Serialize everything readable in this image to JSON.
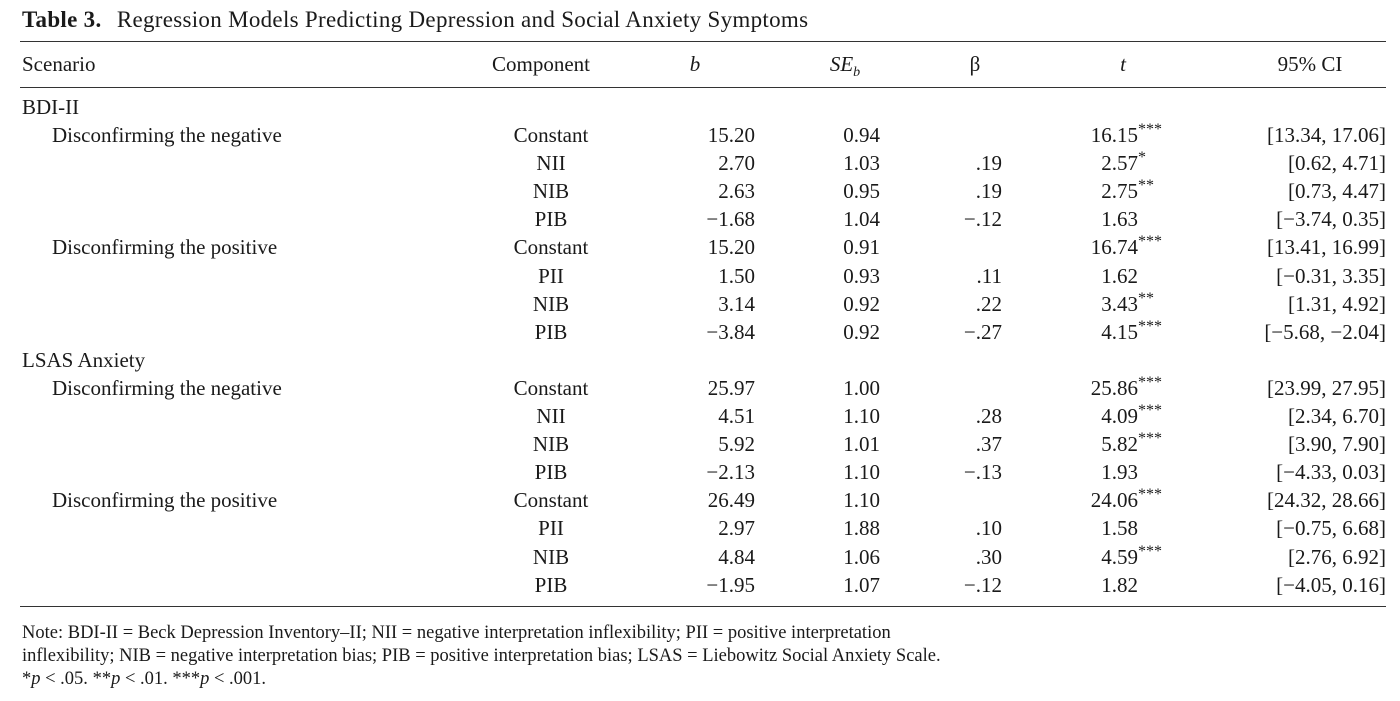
{
  "caption": {
    "label": "Table 3.",
    "text": "Regression Models Predicting Depression and Social Anxiety Symptoms"
  },
  "header": {
    "scenario": "Scenario",
    "component": "Component",
    "b": "b",
    "se_main": "SE",
    "se_sub": "b",
    "beta": "β",
    "t": "t",
    "ci": "95% CI"
  },
  "rows": [
    {
      "group": "BDI-II"
    },
    {
      "scenario": "Disconfirming the negative",
      "component": "Constant",
      "b": "15.20",
      "se": "0.94",
      "beta": "",
      "t": "16.15",
      "stars": "***",
      "ci": "[13.34, 17.06]"
    },
    {
      "scenario": "",
      "component": "NII",
      "b": "2.70",
      "se": "1.03",
      "beta": ".19",
      "t": "2.57",
      "stars": "*",
      "ci": "[0.62, 4.71]"
    },
    {
      "scenario": "",
      "component": "NIB",
      "b": "2.63",
      "se": "0.95",
      "beta": ".19",
      "t": "2.75",
      "stars": "**",
      "ci": "[0.73, 4.47]"
    },
    {
      "scenario": "",
      "component": "PIB",
      "b": "−1.68",
      "se": "1.04",
      "beta": "−.12",
      "t": "1.63",
      "stars": "",
      "ci": "[−3.74, 0.35]"
    },
    {
      "scenario": "Disconfirming the positive",
      "component": "Constant",
      "b": "15.20",
      "se": "0.91",
      "beta": "",
      "t": "16.74",
      "stars": "***",
      "ci": "[13.41, 16.99]"
    },
    {
      "scenario": "",
      "component": "PII",
      "b": "1.50",
      "se": "0.93",
      "beta": ".11",
      "t": "1.62",
      "stars": "",
      "ci": "[−0.31, 3.35]"
    },
    {
      "scenario": "",
      "component": "NIB",
      "b": "3.14",
      "se": "0.92",
      "beta": ".22",
      "t": "3.43",
      "stars": "**",
      "ci": "[1.31, 4.92]"
    },
    {
      "scenario": "",
      "component": "PIB",
      "b": "−3.84",
      "se": "0.92",
      "beta": "−.27",
      "t": "4.15",
      "stars": "***",
      "ci": "[−5.68, −2.04]"
    },
    {
      "group": "LSAS Anxiety"
    },
    {
      "scenario": "Disconfirming the negative",
      "component": "Constant",
      "b": "25.97",
      "se": "1.00",
      "beta": "",
      "t": "25.86",
      "stars": "***",
      "ci": "[23.99, 27.95]"
    },
    {
      "scenario": "",
      "component": "NII",
      "b": "4.51",
      "se": "1.10",
      "beta": ".28",
      "t": "4.09",
      "stars": "***",
      "ci": "[2.34, 6.70]"
    },
    {
      "scenario": "",
      "component": "NIB",
      "b": "5.92",
      "se": "1.01",
      "beta": ".37",
      "t": "5.82",
      "stars": "***",
      "ci": "[3.90, 7.90]"
    },
    {
      "scenario": "",
      "component": "PIB",
      "b": "−2.13",
      "se": "1.10",
      "beta": "−.13",
      "t": "1.93",
      "stars": "",
      "ci": "[−4.33, 0.03]"
    },
    {
      "scenario": "Disconfirming the positive",
      "component": "Constant",
      "b": "26.49",
      "se": "1.10",
      "beta": "",
      "t": "24.06",
      "stars": "***",
      "ci": "[24.32, 28.66]"
    },
    {
      "scenario": "",
      "component": "PII",
      "b": "2.97",
      "se": "1.88",
      "beta": ".10",
      "t": "1.58",
      "stars": "",
      "ci": "[−0.75, 6.68]"
    },
    {
      "scenario": "",
      "component": "NIB",
      "b": "4.84",
      "se": "1.06",
      "beta": ".30",
      "t": "4.59",
      "stars": "***",
      "ci": "[2.76, 6.92]"
    },
    {
      "scenario": "",
      "component": "PIB",
      "b": "−1.95",
      "se": "1.07",
      "beta": "−.12",
      "t": "1.82",
      "stars": "",
      "ci": "[−4.05, 0.16]"
    }
  ],
  "note": {
    "line1": "Note: BDI-II = Beck Depression Inventory–II; NII = negative interpretation inflexibility; PII = positive interpretation",
    "line2": "inflexibility; NIB = negative interpretation bias; PIB = positive interpretation bias; LSAS = Liebowitz Social Anxiety Scale.",
    "sig1_stars": "*",
    "sig1_p": "p",
    "sig1_text": " < .05. ",
    "sig2_stars": "**",
    "sig2_p": "p",
    "sig2_text": " < .01. ",
    "sig3_stars": "***",
    "sig3_p": "p",
    "sig3_text": " < .001."
  }
}
